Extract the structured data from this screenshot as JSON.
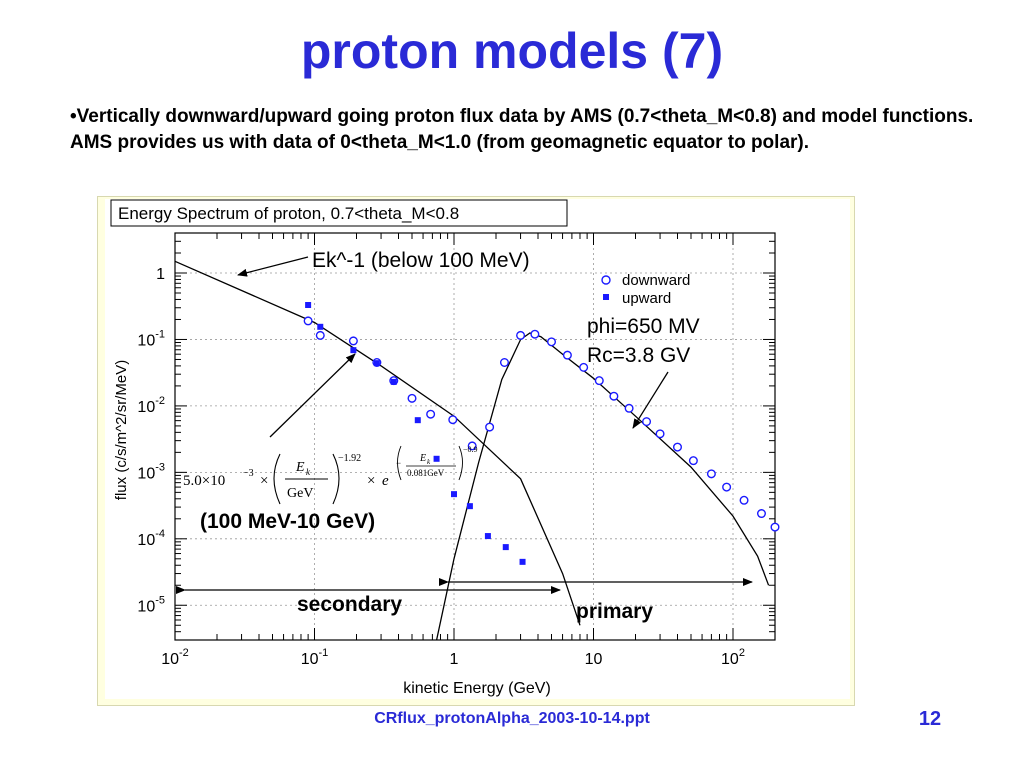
{
  "slide": {
    "title": "proton models (7)",
    "bullet": "•Vertically downward/upward going proton flux data by AMS (0.7<theta_M<0.8) and model functions. AMS provides us with data of 0<theta_M<1.0 (from geomagnetic equator to polar).",
    "footer": "CRflux_protonAlpha_2003-10-14.ppt",
    "page_number": "12"
  },
  "colors": {
    "title_blue": "#2a2ad6",
    "marker_blue": "#1a1aff",
    "frame_bg": "#ffffe0"
  },
  "chart_data": {
    "type": "scatter",
    "title": "Energy Spectrum of proton, 0.7<theta_M<0.8",
    "xlabel": "kinetic Energy (GeV)",
    "ylabel": "flux (c/s/m^2/sr/MeV)",
    "xscale": "log",
    "yscale": "log",
    "xlim": [
      0.01,
      200
    ],
    "ylim": [
      3e-06,
      4
    ],
    "grid": true,
    "x_ticks": [
      "10^-2",
      "10^-1",
      "1",
      "10",
      "10^2"
    ],
    "y_ticks": [
      "1",
      "10^-1",
      "10^-2",
      "10^-3",
      "10^-4",
      "10^-5"
    ],
    "legend": {
      "placement": "top-right",
      "entries": [
        "downward",
        "upward"
      ]
    },
    "series": [
      {
        "name": "downward",
        "marker": "open-circle",
        "points": [
          [
            0.09,
            0.19
          ],
          [
            0.11,
            0.115
          ],
          [
            0.19,
            0.095
          ],
          [
            0.28,
            0.045
          ],
          [
            0.37,
            0.024
          ],
          [
            0.5,
            0.013
          ],
          [
            0.68,
            0.0075
          ],
          [
            0.98,
            0.0062
          ],
          [
            1.35,
            0.0025
          ],
          [
            1.8,
            0.0048
          ],
          [
            2.3,
            0.045
          ],
          [
            3.0,
            0.115
          ],
          [
            3.8,
            0.12
          ],
          [
            5.0,
            0.092
          ],
          [
            6.5,
            0.058
          ],
          [
            8.5,
            0.038
          ],
          [
            11,
            0.024
          ],
          [
            14,
            0.014
          ],
          [
            18,
            0.0092
          ],
          [
            24,
            0.0058
          ],
          [
            30,
            0.0038
          ],
          [
            40,
            0.0024
          ],
          [
            52,
            0.0015
          ],
          [
            70,
            0.00095
          ],
          [
            90,
            0.0006
          ],
          [
            120,
            0.00038
          ],
          [
            160,
            0.00024
          ],
          [
            200,
            0.00015
          ]
        ]
      },
      {
        "name": "upward",
        "marker": "filled-square",
        "points": [
          [
            0.09,
            0.33
          ],
          [
            0.11,
            0.155
          ],
          [
            0.19,
            0.069
          ],
          [
            0.28,
            0.044
          ],
          [
            0.37,
            0.023
          ],
          [
            0.55,
            0.0061
          ],
          [
            0.75,
            0.0016
          ],
          [
            1.0,
            0.00047
          ],
          [
            1.3,
            0.00031
          ],
          [
            1.75,
            0.00011
          ],
          [
            2.35,
            7.5e-05
          ],
          [
            3.1,
            4.5e-05
          ]
        ]
      }
    ],
    "model_curves": [
      {
        "label": "(100 MeV-10 GeV)",
        "points": [
          [
            0.01,
            1.5
          ],
          [
            0.1,
            0.18
          ],
          [
            0.3,
            0.04
          ],
          [
            1.0,
            0.007
          ],
          [
            3.0,
            0.0008
          ],
          [
            6.0,
            3e-05
          ],
          [
            8.0,
            5e-06
          ]
        ]
      },
      {
        "label": "phi=650 MV Rc=3.8 GV",
        "points": [
          [
            0.75,
            3e-06
          ],
          [
            1.0,
            5e-05
          ],
          [
            1.5,
            0.0014
          ],
          [
            2.2,
            0.025
          ],
          [
            3.0,
            0.1
          ],
          [
            3.5,
            0.125
          ],
          [
            4.2,
            0.11
          ],
          [
            6.0,
            0.06
          ],
          [
            10.0,
            0.026
          ],
          [
            20.0,
            0.007
          ],
          [
            50.0,
            0.0012
          ],
          [
            100.0,
            0.00022
          ],
          [
            150.0,
            5.5e-05
          ],
          [
            180.0,
            2e-05
          ]
        ]
      }
    ],
    "annotations": {
      "ek_label": "Ek^-1 (below 100 MeV)",
      "phi_label": "phi=650 MV",
      "rc_label": "Rc=3.8 GV",
      "model_range_label": "(100 MeV-10 GeV)",
      "secondary_label": "secondary",
      "primary_label": "primary"
    },
    "formula": {
      "coefficient": "5.0×10",
      "coefficient_exp": "−3",
      "times": "×",
      "numerator": "E",
      "numerator_sub": "k",
      "denominator": "GeV",
      "power": "−1.92",
      "e_symbol": "e",
      "exp_numerator": "E",
      "exp_numerator_sub": "k",
      "exp_denominator": "0.081GeV",
      "exp_power": "−0.9"
    }
  }
}
